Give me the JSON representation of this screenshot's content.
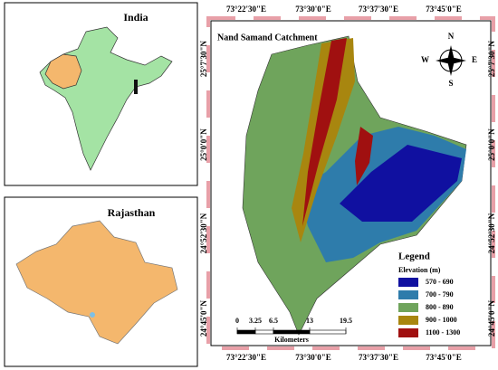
{
  "inset_india": {
    "title": "India"
  },
  "inset_rajasthan": {
    "title": "Rajasthan"
  },
  "map": {
    "title": "Nand Samand Catchment",
    "top_labels": [
      "73°22'30\"E",
      "73°30'0\"E",
      "73°37'30\"E",
      "73°45'0\"E"
    ],
    "bottom_labels": [
      "73°22'30\"E",
      "73°30'0\"E",
      "73°37'30\"E",
      "73°45'0\"E"
    ],
    "left_labels": [
      "25°7'30\"N",
      "25°0'0\"N",
      "24°52'30\"N",
      "24°45'0\"N"
    ],
    "right_labels": [
      "25°7'30\"N",
      "25°0'0\"N",
      "24°52'30\"N",
      "24°45'0\"N"
    ],
    "compass": {
      "n": "N",
      "s": "S",
      "e": "E",
      "w": "W"
    },
    "legend": {
      "title": "Legend",
      "subtitle": "Elevation (m)",
      "items": [
        {
          "label": "570 - 690",
          "color": "#1010a0"
        },
        {
          "label": "700 - 790",
          "color": "#2e7cab"
        },
        {
          "label": "800 - 890",
          "color": "#6fa45c"
        },
        {
          "label": "900 - 1000",
          "color": "#a8860f"
        },
        {
          "label": "1100 - 1300",
          "color": "#a01010"
        }
      ]
    },
    "scale_bar": {
      "ticks": [
        0,
        3.25,
        6.5,
        13,
        19.5
      ],
      "unit": "Kilometers"
    }
  }
}
